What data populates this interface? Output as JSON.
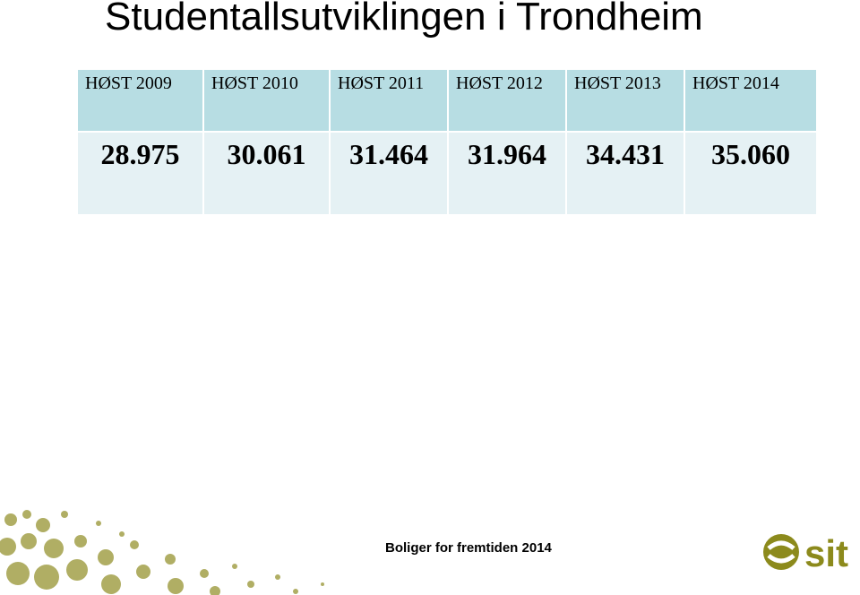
{
  "header": {
    "title": "Studentallsutviklingen i Trondheim"
  },
  "table": {
    "columns": [
      "HØST 2009",
      "HØST 2010",
      "HØST 2011",
      "HØST 2012",
      "HØST 2013",
      "HØST 2014"
    ],
    "rows": [
      [
        "28.975",
        "30.061",
        "31.464",
        "31.964",
        "34.431",
        "35.060"
      ]
    ]
  },
  "footer": {
    "text": "Boliger for fremtiden 2014",
    "logo": "sit"
  }
}
